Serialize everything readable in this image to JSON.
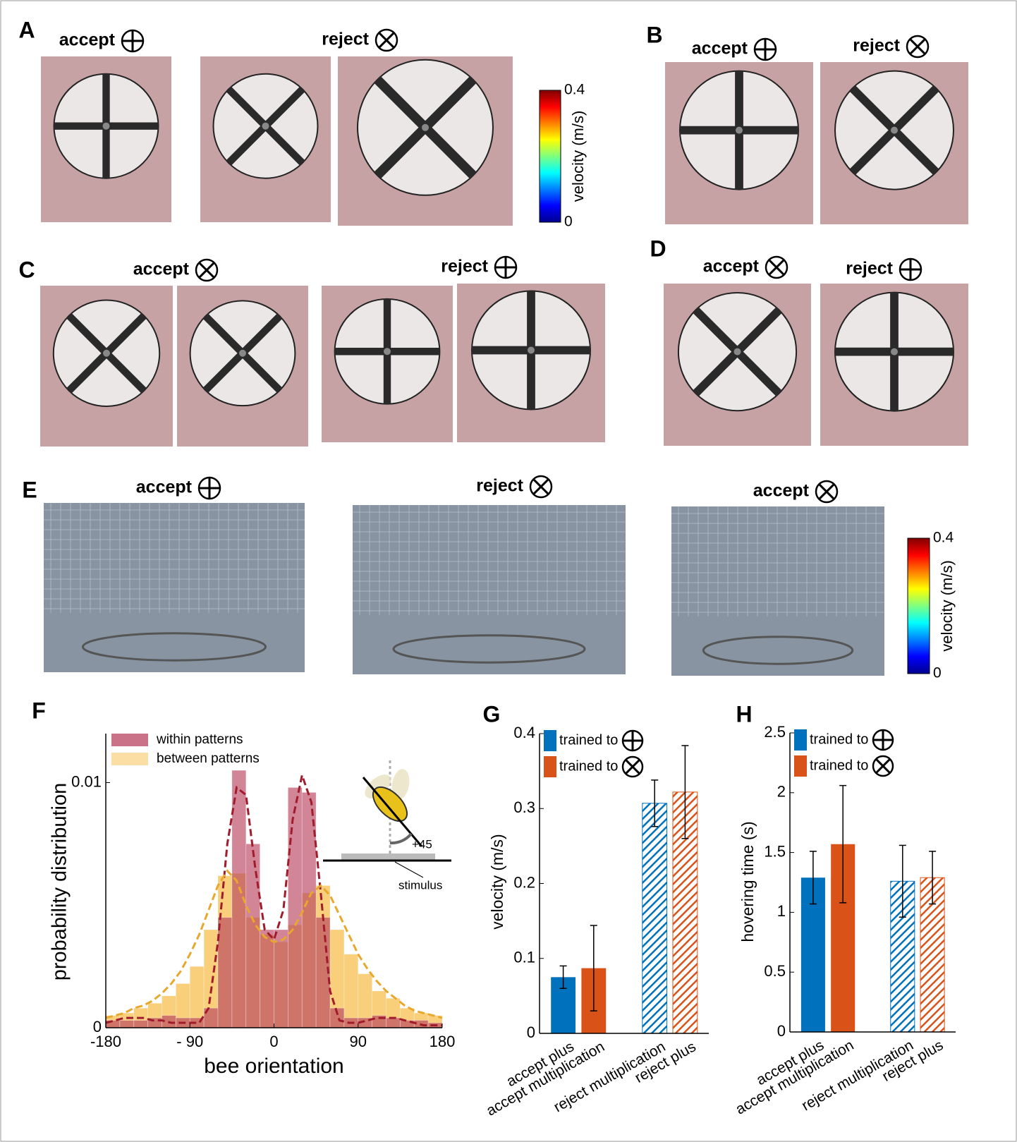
{
  "panels": [
    {
      "label": "A",
      "titles": [
        "accept",
        "reject"
      ]
    },
    {
      "label": "B",
      "titles": [
        "accept",
        "reject"
      ]
    },
    {
      "label": "C",
      "titles": [
        "accept",
        "reject"
      ]
    },
    {
      "label": "D",
      "titles": [
        "accept",
        "reject"
      ]
    },
    {
      "label": "E",
      "titles": [
        "accept",
        "reject",
        "accept"
      ]
    }
  ],
  "colorbars": [
    {
      "label": "velocity (m/s)",
      "ylim": [
        0,
        0.4
      ],
      "yticks": [
        0,
        0.4
      ]
    },
    {
      "label": "velocity (m/s)",
      "ylim": [
        0,
        0.4
      ],
      "yticks": [
        0,
        0.4
      ]
    }
  ],
  "chart_data": [
    {
      "type": "histogram",
      "label": "F",
      "xlabel": "bee orientation",
      "ylabel": "probability distribution",
      "bins": [
        -180,
        -165,
        -150,
        -135,
        -120,
        -105,
        -90,
        -75,
        -60,
        -45,
        -30,
        -15,
        0,
        15,
        30,
        45,
        60,
        75,
        90,
        105,
        120,
        135,
        150,
        165,
        180
      ],
      "series": [
        {
          "name": "within patterns",
          "color": "#b8435f",
          "values": [
            0.0003,
            0.0003,
            0.0003,
            0.0004,
            0.0005,
            0.0004,
            0.0004,
            0.0008,
            0.0045,
            0.0105,
            0.0075,
            0.004,
            0.004,
            0.0098,
            0.0096,
            0.0045,
            0.0008,
            0.0004,
            0.0004,
            0.0005,
            0.0004,
            0.0003,
            0.0003,
            0.0002
          ]
        },
        {
          "name": "between patterns",
          "color": "#f7c35a",
          "values": [
            0.0005,
            0.0006,
            0.0008,
            0.001,
            0.0013,
            0.0018,
            0.0025,
            0.004,
            0.0062,
            0.0063,
            0.0045,
            0.0038,
            0.0035,
            0.0042,
            0.0055,
            0.0058,
            0.004,
            0.003,
            0.0022,
            0.0015,
            0.0012,
            0.0008,
            0.0006,
            0.0005
          ]
        }
      ],
      "fit_x": [
        -180,
        -170,
        -160,
        -150,
        -140,
        -130,
        -120,
        -110,
        -100,
        -90,
        -80,
        -70,
        -60,
        -50,
        -40,
        -30,
        -20,
        -10,
        0,
        10,
        20,
        30,
        40,
        50,
        60,
        70,
        80,
        90,
        100,
        110,
        120,
        130,
        140,
        150,
        160,
        170,
        180
      ],
      "fits": [
        {
          "color": "#a01c2c",
          "values": [
            0.0002,
            0.0003,
            0.0004,
            0.0004,
            0.0004,
            0.0003,
            0.0003,
            0.0002,
            0.0002,
            0.0002,
            0.0002,
            0.0008,
            0.0035,
            0.0075,
            0.0098,
            0.0095,
            0.0065,
            0.004,
            0.0036,
            0.0048,
            0.0085,
            0.0103,
            0.0092,
            0.0055,
            0.0015,
            0.0003,
            0.0002,
            0.0002,
            0.0003,
            0.0004,
            0.0004,
            0.0004,
            0.0003,
            0.0002,
            0.0001,
            0.0001,
            0.0001
          ]
        },
        {
          "color": "#e8a82e",
          "values": [
            0.0004,
            0.0005,
            0.0006,
            0.0008,
            0.0009,
            0.0011,
            0.0014,
            0.0018,
            0.0023,
            0.003,
            0.0038,
            0.0048,
            0.0058,
            0.0064,
            0.006,
            0.005,
            0.0042,
            0.0037,
            0.0035,
            0.0036,
            0.004,
            0.0047,
            0.0055,
            0.0058,
            0.0054,
            0.0046,
            0.0038,
            0.003,
            0.0024,
            0.0019,
            0.0015,
            0.0012,
            0.0009,
            0.0007,
            0.0006,
            0.0005,
            0.0004
          ]
        }
      ],
      "xlim": [
        -180,
        180
      ],
      "ylim": [
        0,
        0.012
      ],
      "xticks": [
        -180,
        {
          "value": -90,
          "label": "- 90"
        },
        0,
        90,
        180
      ],
      "yticks": [
        0,
        0.01
      ],
      "inset": {
        "angle_label": "+45",
        "stimulus_label": "stimulus"
      }
    },
    {
      "type": "bar",
      "label": "G",
      "ylabel": "velocity (m/s)",
      "categories": [
        "accept plus",
        "accept multiplication",
        "reject multiplication",
        "reject plus"
      ],
      "values": [
        0.075,
        0.087,
        0.307,
        0.322
      ],
      "errors": [
        0.015,
        0.057,
        0.031,
        0.062
      ],
      "bar_colors": [
        "#0072bd",
        "#d95319",
        "#0072bd",
        "#d95319"
      ],
      "hatched": [
        false,
        false,
        true,
        true
      ],
      "legend": [
        {
          "name": "trained to",
          "color": "#0072bd"
        },
        {
          "name": "trained to",
          "color": "#d95319"
        }
      ],
      "ylim": [
        0,
        0.4
      ],
      "yticks": [
        0,
        0.1,
        0.2,
        0.3,
        0.4
      ]
    },
    {
      "type": "bar",
      "label": "H",
      "ylabel": "hovering time (s)",
      "categories": [
        "accept plus",
        "accept multiplication",
        "reject multiplication",
        "reject plus"
      ],
      "values": [
        1.29,
        1.57,
        1.26,
        1.29
      ],
      "errors": [
        0.22,
        0.49,
        0.3,
        0.22
      ],
      "bar_colors": [
        "#0072bd",
        "#d95319",
        "#0072bd",
        "#d95319"
      ],
      "hatched": [
        false,
        false,
        true,
        true
      ],
      "legend": [
        {
          "name": "trained to",
          "color": "#0072bd"
        },
        {
          "name": "trained to",
          "color": "#d95319"
        }
      ],
      "ylim": [
        0,
        2.5
      ],
      "yticks": [
        0,
        0.5,
        1,
        1.5,
        2,
        2.5
      ]
    }
  ]
}
